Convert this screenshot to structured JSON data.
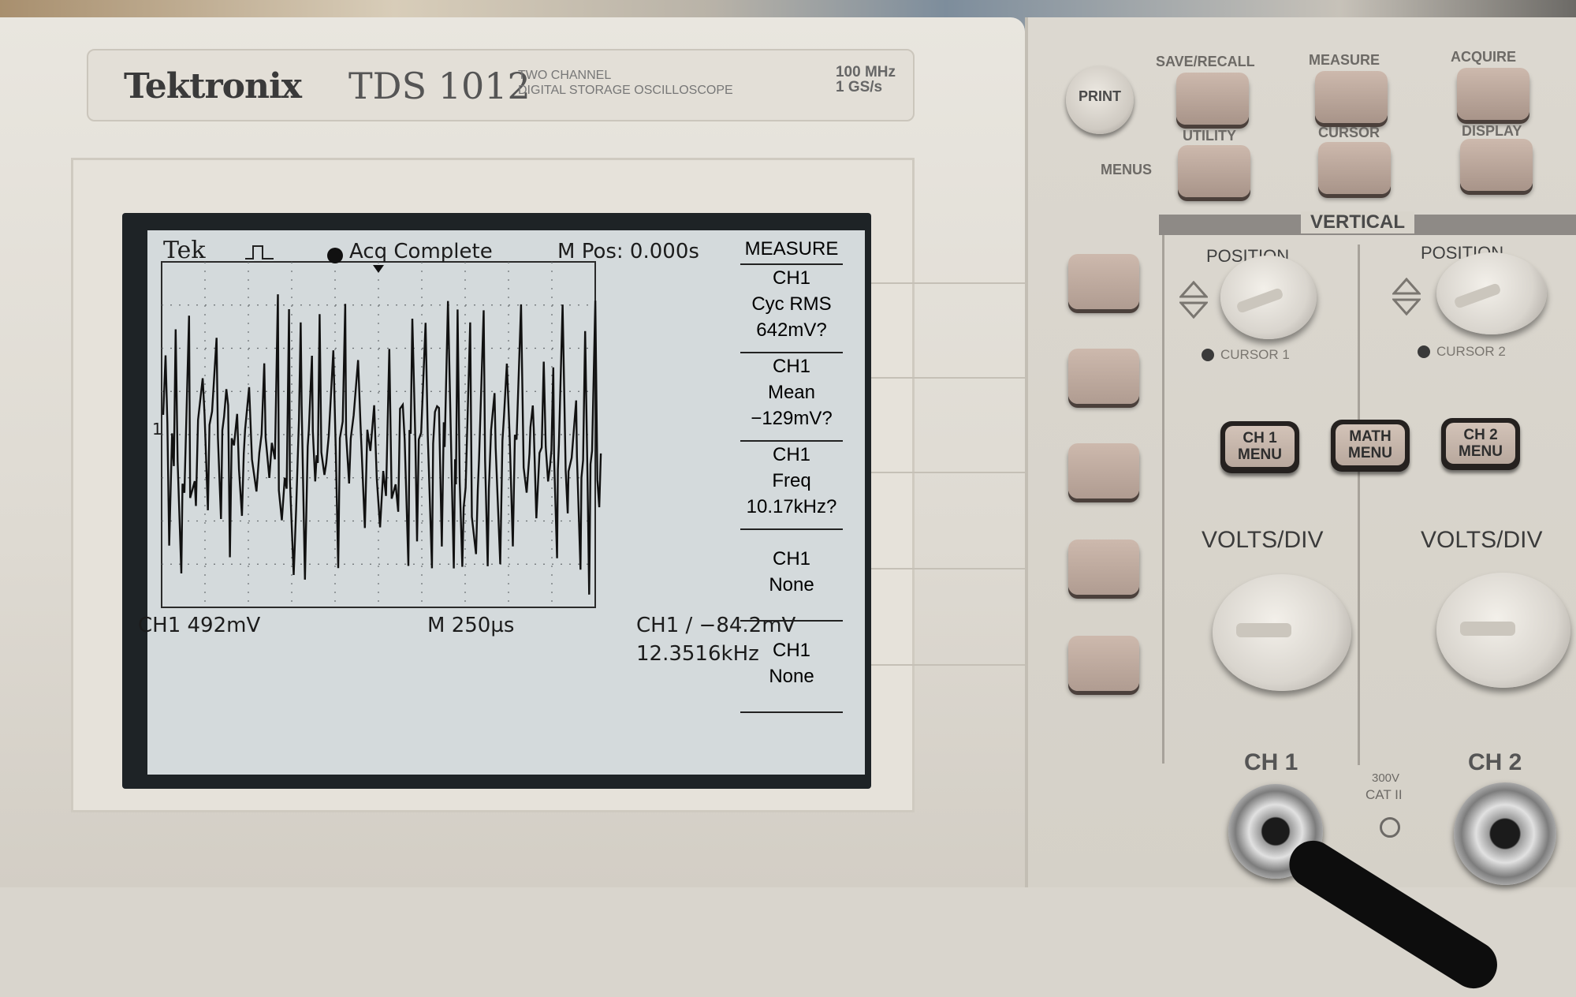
{
  "brand": {
    "logo": "Tektronix",
    "model": "TDS 1012",
    "description_line1": "TWO CHANNEL",
    "description_line2": "DIGITAL STORAGE OSCILLOSCOPE",
    "spec_bandwidth": "100 MHz",
    "spec_sample_rate": "1 GS/s"
  },
  "screen": {
    "tek_label": "Tek",
    "acq_status": "Acq Complete",
    "m_pos": "M Pos: 0.000s",
    "ch1_marker": "1",
    "ch1_scale": "CH1  492mV",
    "timebase": "M 250µs",
    "trigger": "CH1 ∕ −84.2mV",
    "trigger_freq": "12.3516kHz",
    "measure_menu": {
      "title": "MEASURE",
      "items": [
        {
          "source": "CH1",
          "type": "Cyc RMS",
          "value": "642mV?"
        },
        {
          "source": "CH1",
          "type": "Mean",
          "value": "−129mV?"
        },
        {
          "source": "CH1",
          "type": "Freq",
          "value": "10.17kHz?"
        },
        {
          "source": "CH1",
          "type": "None",
          "value": ""
        },
        {
          "source": "CH1",
          "type": "None",
          "value": ""
        }
      ]
    }
  },
  "panel": {
    "print_label": "PRINT",
    "menus_label": "MENUS",
    "menu_buttons": {
      "save_recall": "SAVE/RECALL",
      "measure": "MEASURE",
      "acquire": "ACQUIRE",
      "utility": "UTILITY",
      "cursor": "CURSOR",
      "display": "DISPLAY"
    },
    "vertical": {
      "title": "VERTICAL",
      "position_label": "POSITION",
      "cursor1_label": "CURSOR 1",
      "cursor2_label": "CURSOR 2",
      "ch1_menu": "CH 1\nMENU",
      "math_menu": "MATH\nMENU",
      "ch2_menu": "CH 2\nMENU",
      "volts_div": "VOLTS/DIV",
      "ch1_input": "CH 1",
      "ch2_input": "CH 2",
      "cat_rating_line1": "300V",
      "cat_rating_line2": "CAT II"
    }
  },
  "colors": {
    "lcd_background": "#d4dadc",
    "trace": "#111111",
    "button_face": "#c0ada1"
  }
}
